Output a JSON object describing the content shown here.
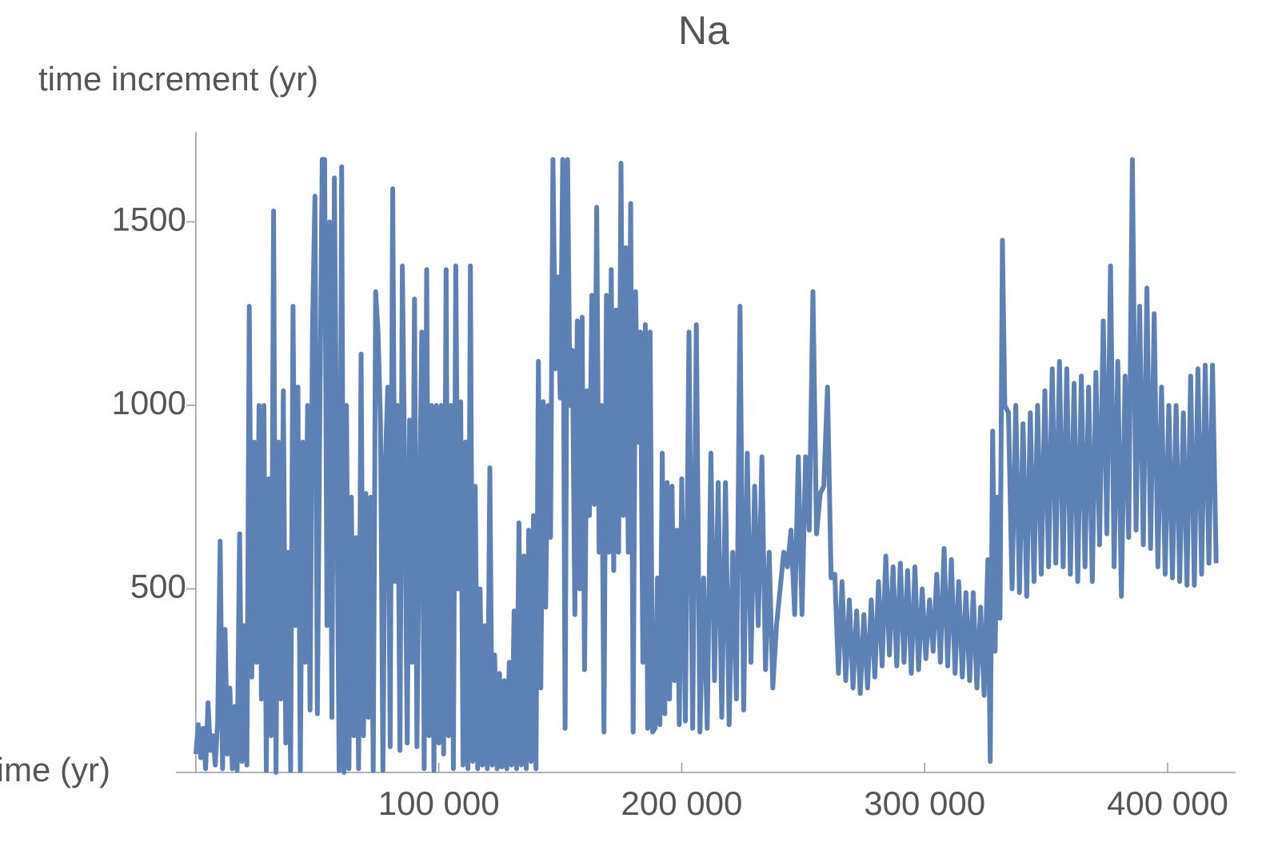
{
  "chart_data": {
    "type": "line",
    "title": "Na",
    "y_label": "time increment (yr)",
    "x_label": "time (yr)",
    "color": "#5e81b5",
    "xlim": [
      -8200,
      428000
    ],
    "ylim": [
      0,
      1745
    ],
    "xticks": [
      {
        "value": 100000,
        "label": "100 000"
      },
      {
        "value": 200000,
        "label": "200 000"
      },
      {
        "value": 300000,
        "label": "300 000"
      },
      {
        "value": 400000,
        "label": "400 000"
      }
    ],
    "yticks": [
      500,
      1000,
      1500
    ],
    "x": [
      0,
      1000,
      2000,
      3000,
      4000,
      5000,
      6000,
      7000,
      8000,
      9000,
      10000,
      11000,
      12000,
      13000,
      14000,
      15000,
      16000,
      17000,
      18000,
      19000,
      20000,
      21000,
      22000,
      23000,
      24000,
      25000,
      26000,
      27000,
      28000,
      29000,
      30000,
      31000,
      32000,
      33000,
      34000,
      35000,
      36000,
      37000,
      38000,
      39000,
      40000,
      41000,
      42000,
      43000,
      44000,
      45000,
      46000,
      47000,
      48000,
      49000,
      50000,
      51000,
      52000,
      53000,
      54000,
      55000,
      56000,
      57000,
      58000,
      59000,
      60000,
      61000,
      62000,
      63000,
      64000,
      65000,
      66000,
      67000,
      68000,
      69000,
      70000,
      71000,
      72000,
      73000,
      74000,
      75000,
      76000,
      77000,
      78000,
      79000,
      80000,
      81000,
      82000,
      83000,
      84000,
      85000,
      86000,
      87000,
      88000,
      89000,
      90000,
      91000,
      92000,
      93000,
      94000,
      95000,
      96000,
      97000,
      98000,
      99000,
      100000,
      101000,
      102000,
      103000,
      104000,
      105000,
      106000,
      107000,
      108000,
      109000,
      110000,
      111000,
      112000,
      113000,
      114000,
      115000,
      116000,
      117000,
      118000,
      119000,
      120000,
      121000,
      122000,
      123000,
      124000,
      125000,
      126000,
      127000,
      128000,
      129000,
      130000,
      131000,
      132000,
      133000,
      134000,
      135000,
      136000,
      137000,
      138000,
      139000,
      140000,
      141000,
      142000,
      143000,
      144000,
      145000,
      146000,
      147000,
      148000,
      149000,
      150000,
      151000,
      152000,
      153000,
      154000,
      155000,
      156000,
      157000,
      158000,
      159000,
      160000,
      161000,
      162000,
      163000,
      164000,
      165000,
      166000,
      167000,
      168000,
      169000,
      170000,
      171000,
      172000,
      173000,
      174000,
      175000,
      176000,
      177000,
      178000,
      179000,
      180000,
      181000,
      182000,
      183000,
      184000,
      185000,
      186000,
      187000,
      188000,
      189000,
      190000,
      191000,
      192000,
      193000,
      194000,
      195000,
      196000,
      197000,
      198000,
      199000,
      200000,
      201500,
      203000,
      204500,
      206000,
      207500,
      209000,
      210500,
      212000,
      213500,
      215000,
      216500,
      218000,
      219500,
      221000,
      222500,
      224000,
      225500,
      227000,
      228500,
      230000,
      231500,
      233000,
      234500,
      236000,
      237500,
      239000,
      240500,
      242000,
      243500,
      245000,
      246500,
      248000,
      249500,
      251000,
      252500,
      254000,
      255500,
      257000,
      258500,
      260000,
      261500,
      263000,
      264500,
      266000,
      267500,
      269000,
      270500,
      272000,
      273500,
      275000,
      276500,
      278000,
      279500,
      281000,
      282500,
      284000,
      285500,
      287000,
      288500,
      290000,
      291500,
      293000,
      294500,
      296000,
      297500,
      299000,
      300500,
      302000,
      303500,
      305000,
      306500,
      308000,
      309500,
      311000,
      312500,
      314000,
      315500,
      317000,
      318500,
      320000,
      321500,
      323000,
      324500,
      326000,
      327000,
      328000,
      329000,
      330000,
      331000,
      332000,
      333000,
      334500,
      336000,
      337500,
      339000,
      340500,
      342000,
      343500,
      345000,
      346500,
      348000,
      349500,
      351000,
      352500,
      354000,
      355500,
      357000,
      358500,
      360000,
      361500,
      363000,
      364500,
      366000,
      367500,
      369000,
      370500,
      372000,
      373500,
      375000,
      376500,
      378000,
      379500,
      381000,
      382500,
      384000,
      385500,
      387000,
      388500,
      390000,
      391500,
      393000,
      394500,
      396000,
      397500,
      399000,
      400500,
      402000,
      403500,
      405000,
      406500,
      408000,
      409500,
      411000,
      412500,
      414000,
      415500,
      417000,
      418500,
      420000
    ],
    "values": [
      50,
      130,
      40,
      120,
      10,
      190,
      60,
      100,
      20,
      140,
      630,
      10,
      390,
      50,
      230,
      10,
      180,
      5,
      650,
      30,
      400,
      20,
      1270,
      260,
      900,
      300,
      1000,
      200,
      1000,
      5,
      800,
      100,
      1530,
      0,
      900,
      200,
      1040,
      80,
      600,
      5,
      1270,
      400,
      1050,
      5,
      900,
      300,
      1000,
      170,
      1200,
      1570,
      160,
      950,
      1670,
      1670,
      400,
      1500,
      150,
      1620,
      800,
      5,
      1650,
      0,
      1000,
      10,
      750,
      100,
      640,
      10,
      1140,
      100,
      760,
      150,
      750,
      5,
      1310,
      1200,
      950,
      5,
      840,
      1050,
      70,
      1590,
      520,
      1000,
      60,
      1380,
      800,
      80,
      960,
      300,
      1290,
      70,
      700,
      1200,
      10,
      1370,
      100,
      1000,
      5,
      1000,
      80,
      1000,
      50,
      1370,
      100,
      1000,
      10,
      1380,
      500,
      1010,
      20,
      900,
      10,
      1380,
      30,
      780,
      10,
      500,
      20,
      400,
      10,
      830,
      20,
      320,
      10,
      270,
      15,
      250,
      10,
      300,
      20,
      440,
      10,
      680,
      20,
      590,
      10,
      660,
      30,
      700,
      10,
      1120,
      230,
      1010,
      450,
      1000,
      640,
      1670,
      1100,
      1350,
      1020,
      1670,
      120,
      1670,
      1000,
      1150,
      430,
      1230,
      500,
      1240,
      280,
      1040,
      700,
      1300,
      730,
      1540,
      600,
      1000,
      110,
      1300,
      600,
      1370,
      550,
      1260,
      600,
      1660,
      700,
      1430,
      600,
      1550,
      110,
      1310,
      900,
      1200,
      300,
      1220,
      120,
      1200,
      110,
      120,
      530,
      130,
      870,
      160,
      790,
      200,
      780,
      250,
      660,
      130,
      800,
      140,
      1200,
      120,
      1220,
      110,
      530,
      120,
      870,
      250,
      790,
      150,
      790,
      130,
      600,
      200,
      1270,
      170,
      870,
      300,
      780,
      400,
      860,
      280,
      600,
      230,
      400,
      500,
      600,
      560,
      660,
      430,
      860,
      430,
      860,
      660,
      1310,
      650,
      760,
      780,
      1050,
      530,
      540,
      270,
      520,
      250,
      470,
      230,
      440,
      215,
      430,
      230,
      470,
      260,
      520,
      290,
      590,
      320,
      560,
      290,
      570,
      300,
      550,
      270,
      560,
      280,
      500,
      310,
      470,
      330,
      540,
      300,
      610,
      290,
      580,
      270,
      520,
      260,
      490,
      250,
      490,
      230,
      450,
      210,
      580,
      30,
      930,
      330,
      750,
      420,
      1450,
      1000,
      980,
      500,
      1000,
      490,
      950,
      480,
      980,
      520,
      1000,
      540,
      1040,
      560,
      1100,
      570,
      1120,
      560,
      1100,
      540,
      1060,
      520,
      1080,
      560,
      1050,
      520,
      1090,
      620,
      1230,
      650,
      1380,
      560,
      1120,
      480,
      1080,
      640,
      1670,
      660,
      1270,
      620,
      1320,
      610,
      1250,
      560,
      1050,
      540,
      1000,
      530,
      1000,
      520,
      980,
      510,
      1080,
      510,
      1100,
      540,
      1110,
      570,
      1110,
      570
    ]
  }
}
